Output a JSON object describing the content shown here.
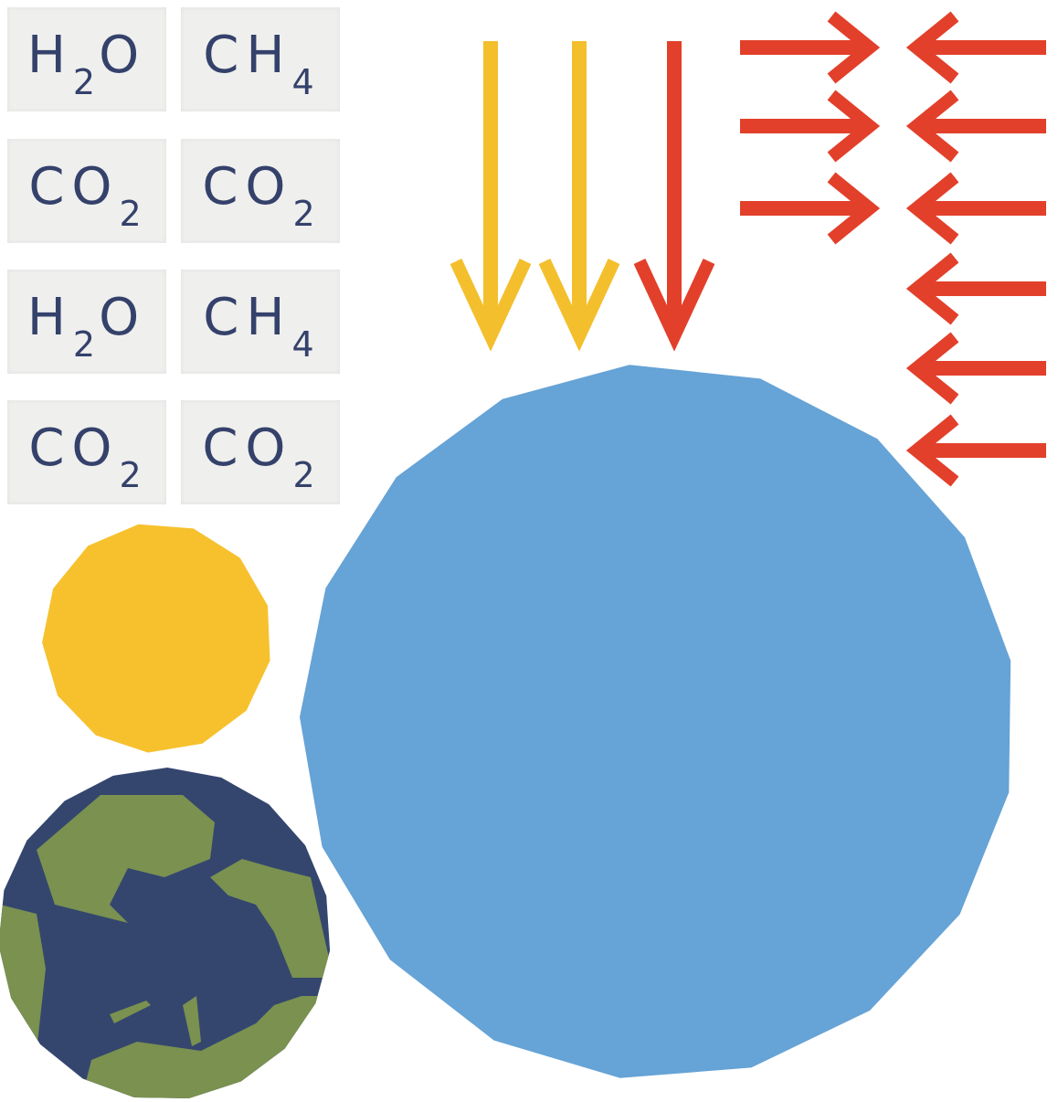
{
  "tiles": [
    {
      "text": "H",
      "sub": "2",
      "after": "O"
    },
    {
      "text": "CH",
      "sub": "4"
    },
    {
      "text": "CO",
      "sub": "2"
    },
    {
      "text": "CO",
      "sub": "2"
    },
    {
      "text": "H",
      "sub": "2",
      "after": "O"
    },
    {
      "text": "CH",
      "sub": "4"
    },
    {
      "text": "CO",
      "sub": "2"
    },
    {
      "text": "CO",
      "sub": "2"
    }
  ]
}
